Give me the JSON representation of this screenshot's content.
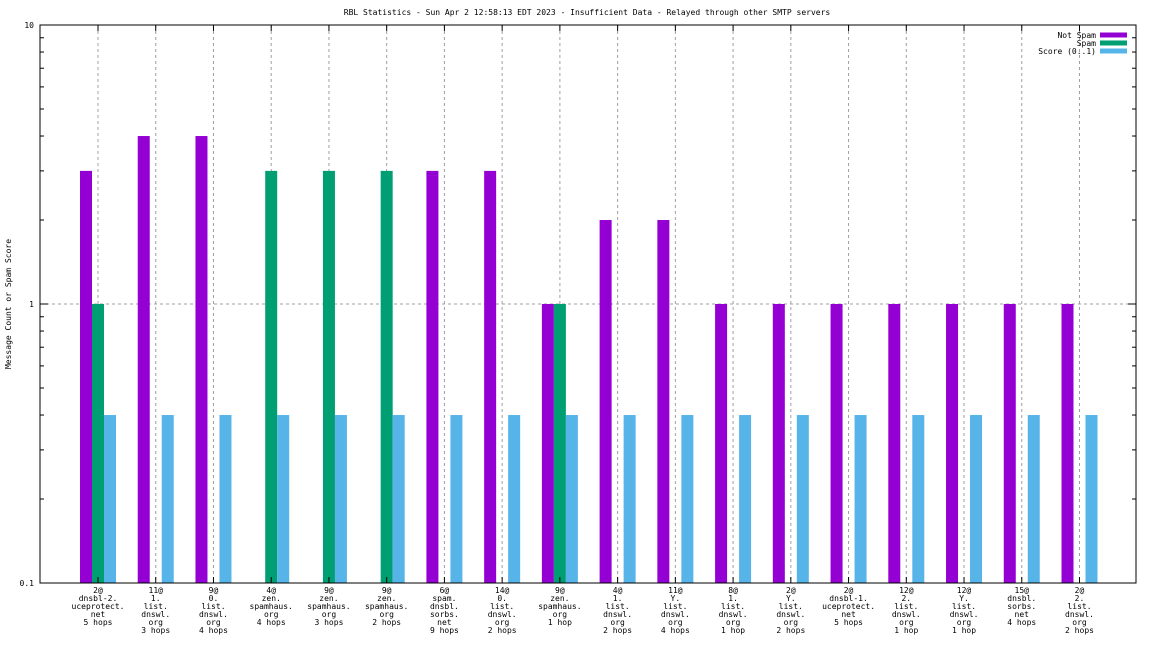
{
  "chart_data": {
    "type": "bar",
    "title": "RBL Statistics - Sun Apr  2 12:58:13 EDT 2023 - Insufficient Data - Relayed through other SMTP servers",
    "xlabel": "",
    "ylabel": "Message Count or Spam Score",
    "yscale": "log",
    "ylim": [
      0.1,
      10
    ],
    "yticks": [
      "0.1",
      "1",
      "10"
    ],
    "grid": true,
    "legend_position": "top-right",
    "categories": [
      [
        "2@",
        "dnsbl-2.",
        "uceprotect.",
        "net",
        "5 hops"
      ],
      [
        "11@",
        "1.",
        "list.",
        "dnswl.",
        "org",
        "3 hops"
      ],
      [
        "9@",
        "0.",
        "list.",
        "dnswl.",
        "org",
        "4 hops"
      ],
      [
        "4@",
        "zen.",
        "spamhaus.",
        "org",
        "4 hops"
      ],
      [
        "9@",
        "zen.",
        "spamhaus.",
        "org",
        "3 hops"
      ],
      [
        "9@",
        "zen.",
        "spamhaus.",
        "org",
        "2 hops"
      ],
      [
        "6@",
        "spam.",
        "dnsbl.",
        "sorbs.",
        "net",
        "9 hops"
      ],
      [
        "14@",
        "0.",
        "list.",
        "dnswl.",
        "org",
        "2 hops"
      ],
      [
        "9@",
        "zen.",
        "spamhaus.",
        "org",
        "1 hop"
      ],
      [
        "4@",
        "1.",
        "list.",
        "dnswl.",
        "org",
        "2 hops"
      ],
      [
        "11@",
        "Y.",
        "list.",
        "dnswl.",
        "org",
        "4 hops"
      ],
      [
        "8@",
        "1.",
        "list.",
        "dnswl.",
        "org",
        "1 hop"
      ],
      [
        "2@",
        "Y.",
        "list.",
        "dnswl.",
        "org",
        "2 hops"
      ],
      [
        "2@",
        "dnsbl-1.",
        "uceprotect.",
        "net",
        "5 hops"
      ],
      [
        "12@",
        "2.",
        "list.",
        "dnswl.",
        "org",
        "1 hop"
      ],
      [
        "12@",
        "Y.",
        "list.",
        "dnswl.",
        "org",
        "1 hop"
      ],
      [
        "15@",
        "dnsbl.",
        "sorbs.",
        "net",
        "4 hops"
      ],
      [
        "2@",
        "2.",
        "list.",
        "dnswl.",
        "org",
        "2 hops"
      ]
    ],
    "series": [
      {
        "name": "Not Spam",
        "color": "#9400d3",
        "values": [
          3,
          4,
          4,
          0,
          0,
          0,
          3,
          3,
          1,
          2,
          2,
          1,
          1,
          1,
          1,
          1,
          1,
          1
        ]
      },
      {
        "name": "Spam",
        "color": "#009e73",
        "values": [
          1,
          0,
          0,
          3,
          3,
          3,
          0,
          0,
          1,
          0,
          0,
          0,
          0,
          0,
          0,
          0,
          0,
          0
        ]
      },
      {
        "name": "Score (0..1)",
        "color": "#56b4e9",
        "values": [
          0.4,
          0.4,
          0.4,
          0.4,
          0.4,
          0.4,
          0.4,
          0.4,
          0.4,
          0.4,
          0.4,
          0.4,
          0.4,
          0.4,
          0.4,
          0.4,
          0.4,
          0.4
        ]
      }
    ]
  }
}
